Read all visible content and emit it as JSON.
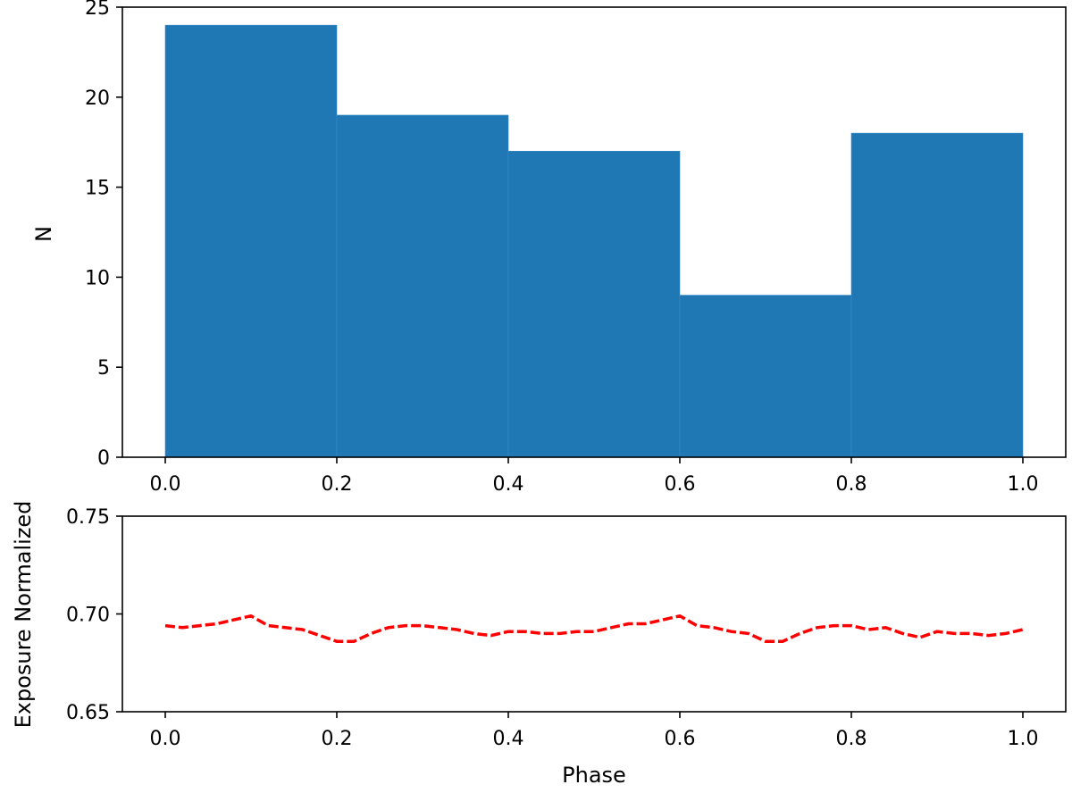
{
  "chart_data": [
    {
      "type": "bar",
      "title": "",
      "xlabel": "",
      "ylabel": "N",
      "bin_edges": [
        0.0,
        0.2,
        0.4,
        0.6,
        0.8,
        1.0
      ],
      "values": [
        24,
        19,
        17,
        9,
        18
      ],
      "xlim": [
        -0.05,
        1.05
      ],
      "ylim": [
        0,
        25
      ],
      "xticks": [
        0.0,
        0.2,
        0.4,
        0.6,
        0.8,
        1.0
      ],
      "xtick_labels": [
        "0.0",
        "0.2",
        "0.4",
        "0.6",
        "0.8",
        "1.0"
      ],
      "yticks": [
        0,
        5,
        10,
        15,
        20,
        25
      ],
      "ytick_labels": [
        "0",
        "5",
        "10",
        "15",
        "20",
        "25"
      ],
      "color": "#1f77b4",
      "grid": false
    },
    {
      "type": "line",
      "title": "",
      "xlabel": "Phase",
      "ylabel": "Exposure Normalized",
      "line_style": "dashed",
      "color": "#ff0000",
      "xlim": [
        -0.05,
        1.05
      ],
      "ylim": [
        0.65,
        0.75
      ],
      "xticks": [
        0.0,
        0.2,
        0.4,
        0.6,
        0.8,
        1.0
      ],
      "xtick_labels": [
        "0.0",
        "0.2",
        "0.4",
        "0.6",
        "0.8",
        "1.0"
      ],
      "yticks": [
        0.65,
        0.7,
        0.75
      ],
      "ytick_labels": [
        "0.65",
        "0.70",
        "0.75"
      ],
      "grid": false,
      "x": [
        0.0,
        0.02,
        0.04,
        0.06,
        0.08,
        0.1,
        0.12,
        0.14,
        0.16,
        0.18,
        0.2,
        0.22,
        0.24,
        0.26,
        0.28,
        0.3,
        0.32,
        0.34,
        0.36,
        0.38,
        0.4,
        0.42,
        0.44,
        0.46,
        0.48,
        0.5,
        0.52,
        0.54,
        0.56,
        0.58,
        0.6,
        0.62,
        0.64,
        0.66,
        0.68,
        0.7,
        0.72,
        0.74,
        0.76,
        0.78,
        0.8,
        0.82,
        0.84,
        0.86,
        0.88,
        0.9,
        0.92,
        0.94,
        0.96,
        0.98,
        1.0
      ],
      "y": [
        0.694,
        0.693,
        0.694,
        0.695,
        0.697,
        0.699,
        0.694,
        0.693,
        0.692,
        0.689,
        0.686,
        0.686,
        0.69,
        0.693,
        0.694,
        0.694,
        0.693,
        0.692,
        0.69,
        0.689,
        0.691,
        0.691,
        0.69,
        0.69,
        0.691,
        0.691,
        0.693,
        0.695,
        0.695,
        0.697,
        0.699,
        0.694,
        0.693,
        0.691,
        0.69,
        0.686,
        0.686,
        0.69,
        0.693,
        0.694,
        0.694,
        0.692,
        0.693,
        0.69,
        0.688,
        0.691,
        0.69,
        0.69,
        0.689,
        0.69,
        0.692
      ]
    }
  ]
}
